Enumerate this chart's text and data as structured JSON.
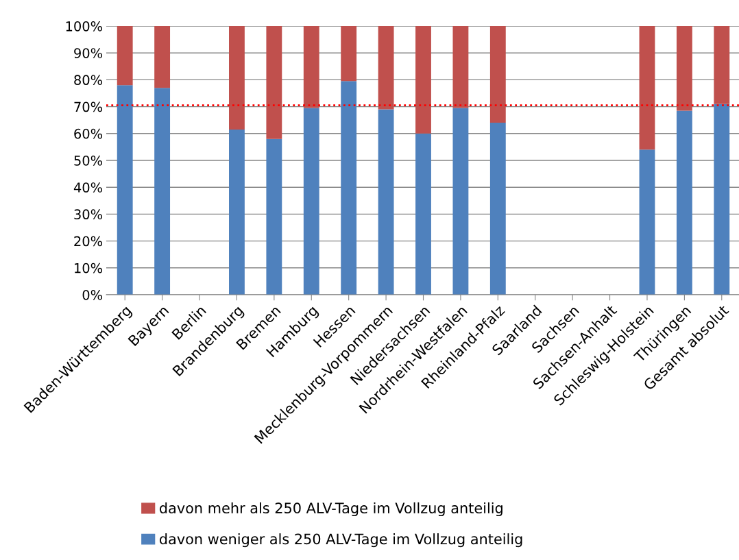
{
  "chart_data": {
    "type": "bar",
    "stacked": true,
    "categories": [
      "Baden-Württemberg",
      "Bayern",
      "Berlin",
      "Brandenburg",
      "Bremen",
      "Hamburg",
      "Hessen",
      "Mecklenburg-Vorpommern",
      "Niedersachsen",
      "Nordrhein-Westfalen",
      "Rheinland-Pfalz",
      "Saarland",
      "Sachsen",
      "Sachsen-Anhalt",
      "Schleswig-Holstein",
      "Thüringen",
      "Gesamt absolut"
    ],
    "series": [
      {
        "name": "davon weniger als 250 ALV-Tage im Vollzug anteilig",
        "color": "#4f81bd",
        "values": [
          78,
          77,
          null,
          61.5,
          58,
          69.5,
          79.5,
          69,
          60,
          69.5,
          64,
          null,
          null,
          null,
          54,
          68.5,
          71
        ]
      },
      {
        "name": "davon mehr als 250 ALV-Tage im Vollzug anteilig",
        "color": "#c0504d",
        "values": [
          22,
          23,
          null,
          38.5,
          42,
          30.5,
          20.5,
          31,
          40,
          30.5,
          36,
          null,
          null,
          null,
          46,
          31.5,
          29
        ]
      }
    ],
    "ylim": [
      0,
      100
    ],
    "yticks": [
      {
        "value": 0,
        "label": "0%"
      },
      {
        "value": 10,
        "label": "10%"
      },
      {
        "value": 20,
        "label": "20%"
      },
      {
        "value": 30,
        "label": "30%"
      },
      {
        "value": 40,
        "label": "40%"
      },
      {
        "value": 50,
        "label": "50%"
      },
      {
        "value": 60,
        "label": "60%"
      },
      {
        "value": 70,
        "label": "70%"
      },
      {
        "value": 80,
        "label": "80%"
      },
      {
        "value": 90,
        "label": "90%"
      },
      {
        "value": 100,
        "label": "100%"
      }
    ],
    "grid": "y",
    "legend": "bottom",
    "ref_lines": [
      {
        "axis": "y",
        "value": 70.5,
        "color": "#ff0000",
        "line_style": "dotted"
      }
    ]
  }
}
